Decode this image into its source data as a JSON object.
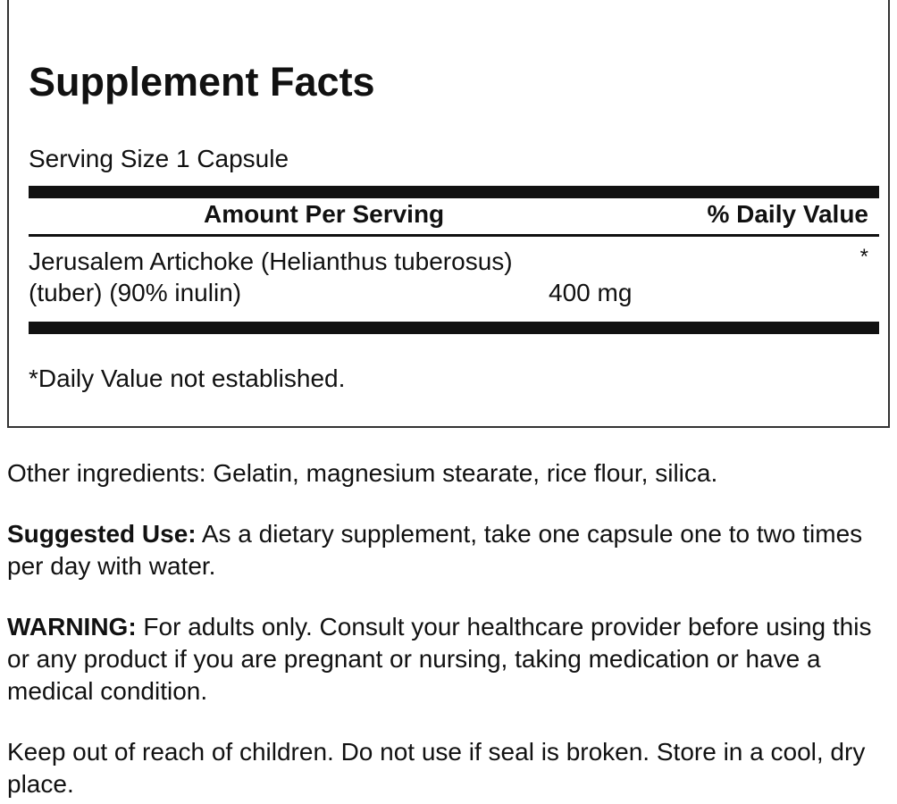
{
  "facts": {
    "title": "Supplement Facts",
    "serving_size": "Serving Size 1 Capsule",
    "header_amount": "Amount Per Serving",
    "header_dv": "% Daily Value",
    "ingredient_line1": "Jerusalem Artichoke (Helianthus tuberosus)",
    "ingredient_line2": "(tuber) (90% inulin)",
    "ingredient_amount": "400 mg",
    "ingredient_dv": "*",
    "footnote": "*Daily Value not established."
  },
  "other_ingredients": "Other ingredients: Gelatin, magnesium stearate, rice flour, silica.",
  "suggested_use": {
    "label": "Suggested Use:",
    "text": " As a dietary supplement, take one capsule one to two times per day with water."
  },
  "warning": {
    "label": "WARNING:",
    "text": " For adults only. Consult your healthcare provider before using this or any product if you are pregnant or nursing, taking medication or have a medical condition."
  },
  "storage": "Keep out of reach of children. Do not use if seal is broken. Store in a cool, dry place."
}
